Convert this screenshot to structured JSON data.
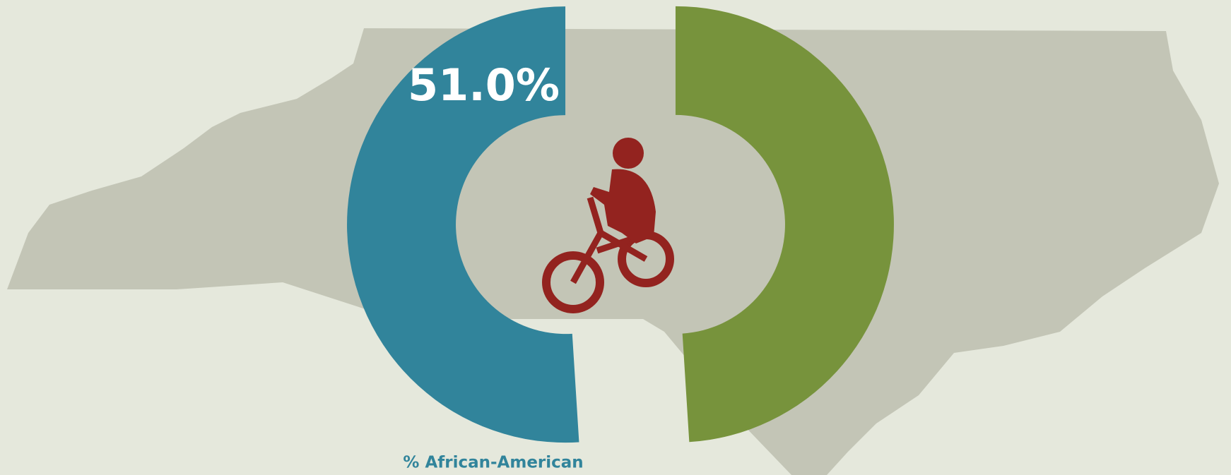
{
  "chart_data": {
    "type": "donut",
    "categories": [
      "% African-American",
      null
    ],
    "values": [
      51,
      49
    ],
    "value_labels": [
      "51.0%",
      null
    ],
    "colors": [
      "#31849b",
      "#77933c"
    ]
  }
}
